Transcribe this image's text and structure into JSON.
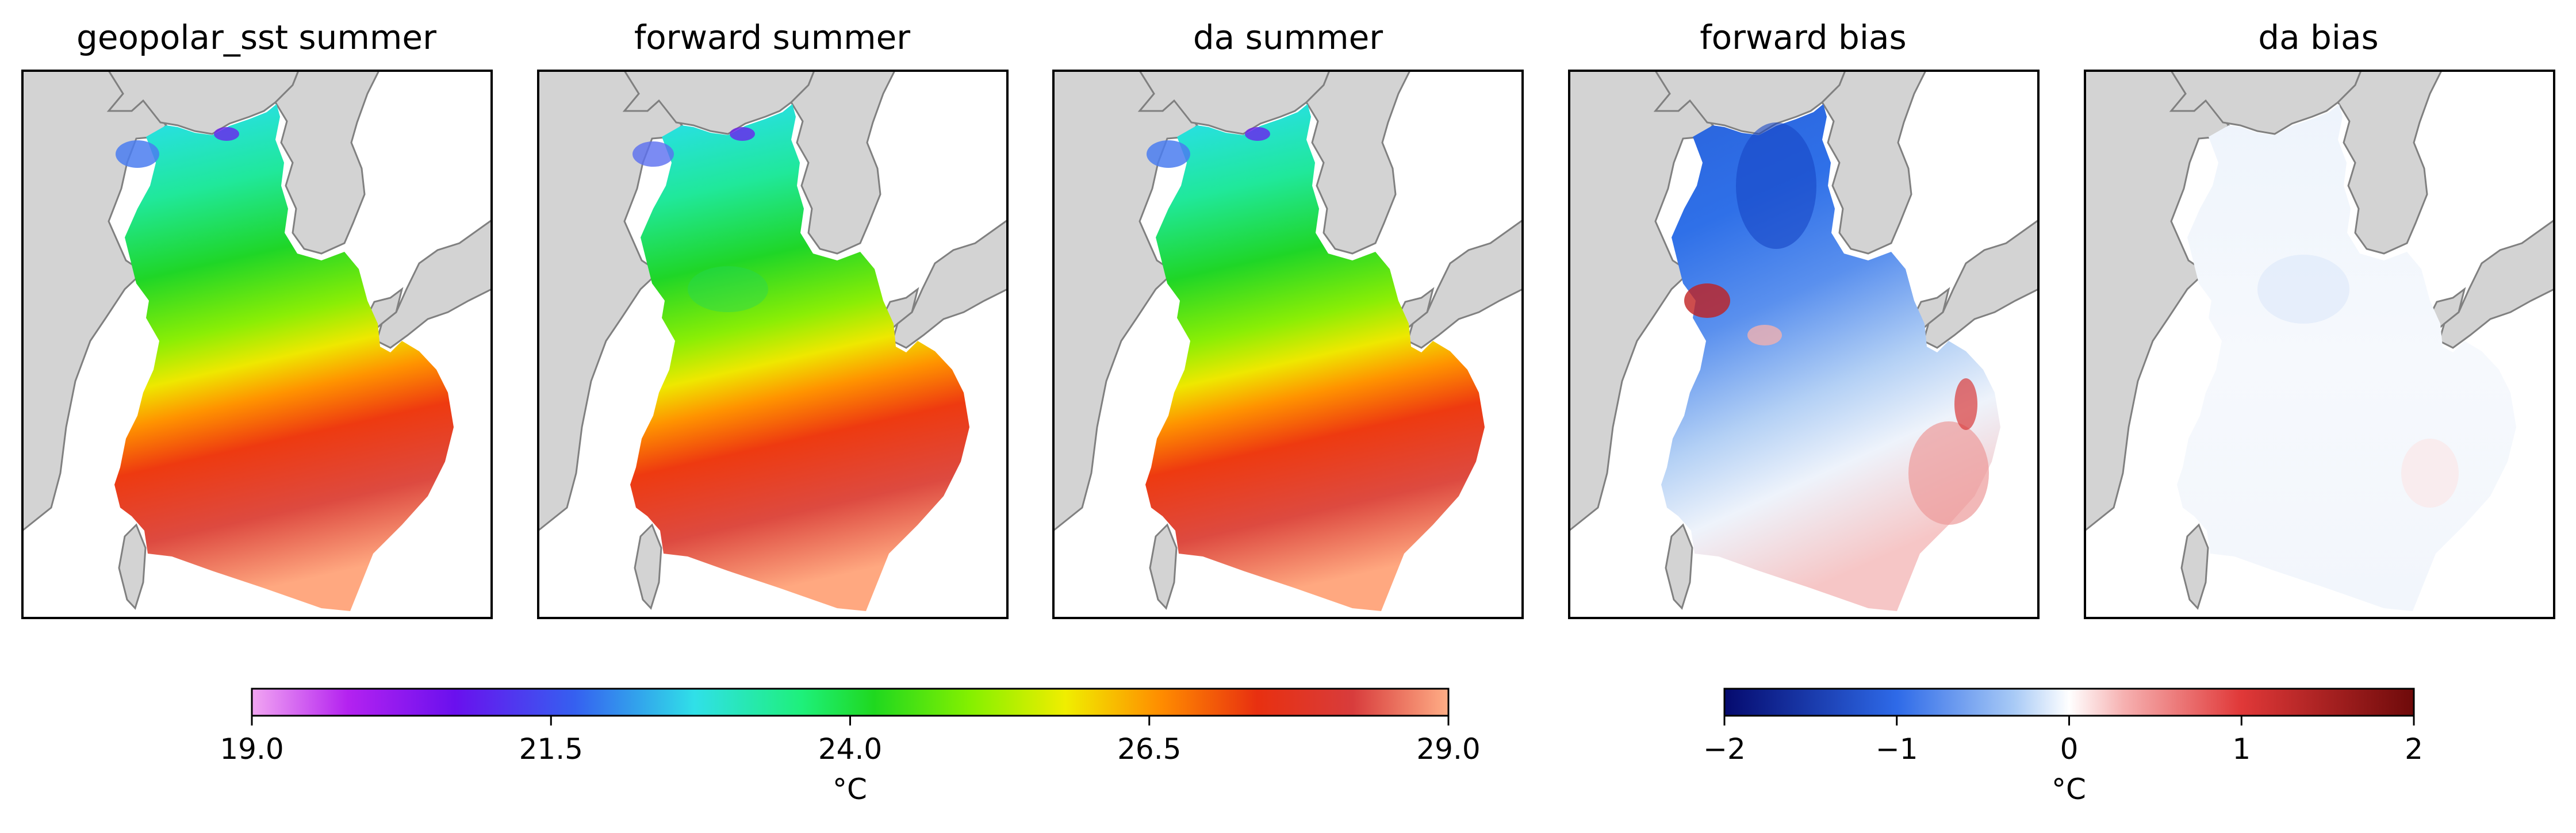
{
  "chart_data": {
    "type": "heatmap",
    "panels": [
      {
        "title": "geopolar_sst summer",
        "variable": "temperature"
      },
      {
        "title": "forward summer",
        "variable": "temperature"
      },
      {
        "title": "da summer",
        "variable": "temperature"
      },
      {
        "title": "forward bias",
        "variable": "bias"
      },
      {
        "title": "da bias",
        "variable": "bias"
      }
    ],
    "colorbars": [
      {
        "name": "temperature",
        "label": "°C",
        "range": [
          19.0,
          29.0
        ],
        "ticks": [
          19.0,
          21.5,
          24.0,
          26.5,
          29.0
        ],
        "tick_labels": [
          "19.0",
          "21.5",
          "24.0",
          "26.5",
          "29.0"
        ],
        "colormap": "rainbow"
      },
      {
        "name": "bias",
        "label": "°C",
        "range": [
          -2,
          2
        ],
        "ticks": [
          -2,
          -1,
          0,
          1,
          2
        ],
        "tick_labels": [
          "−2",
          "−1",
          "0",
          "1",
          "2"
        ],
        "colormap": "diverging blue-white-red"
      }
    ],
    "colors": {
      "land": "#d3d3d3",
      "coast": "#808080",
      "frame": "#000000"
    }
  }
}
